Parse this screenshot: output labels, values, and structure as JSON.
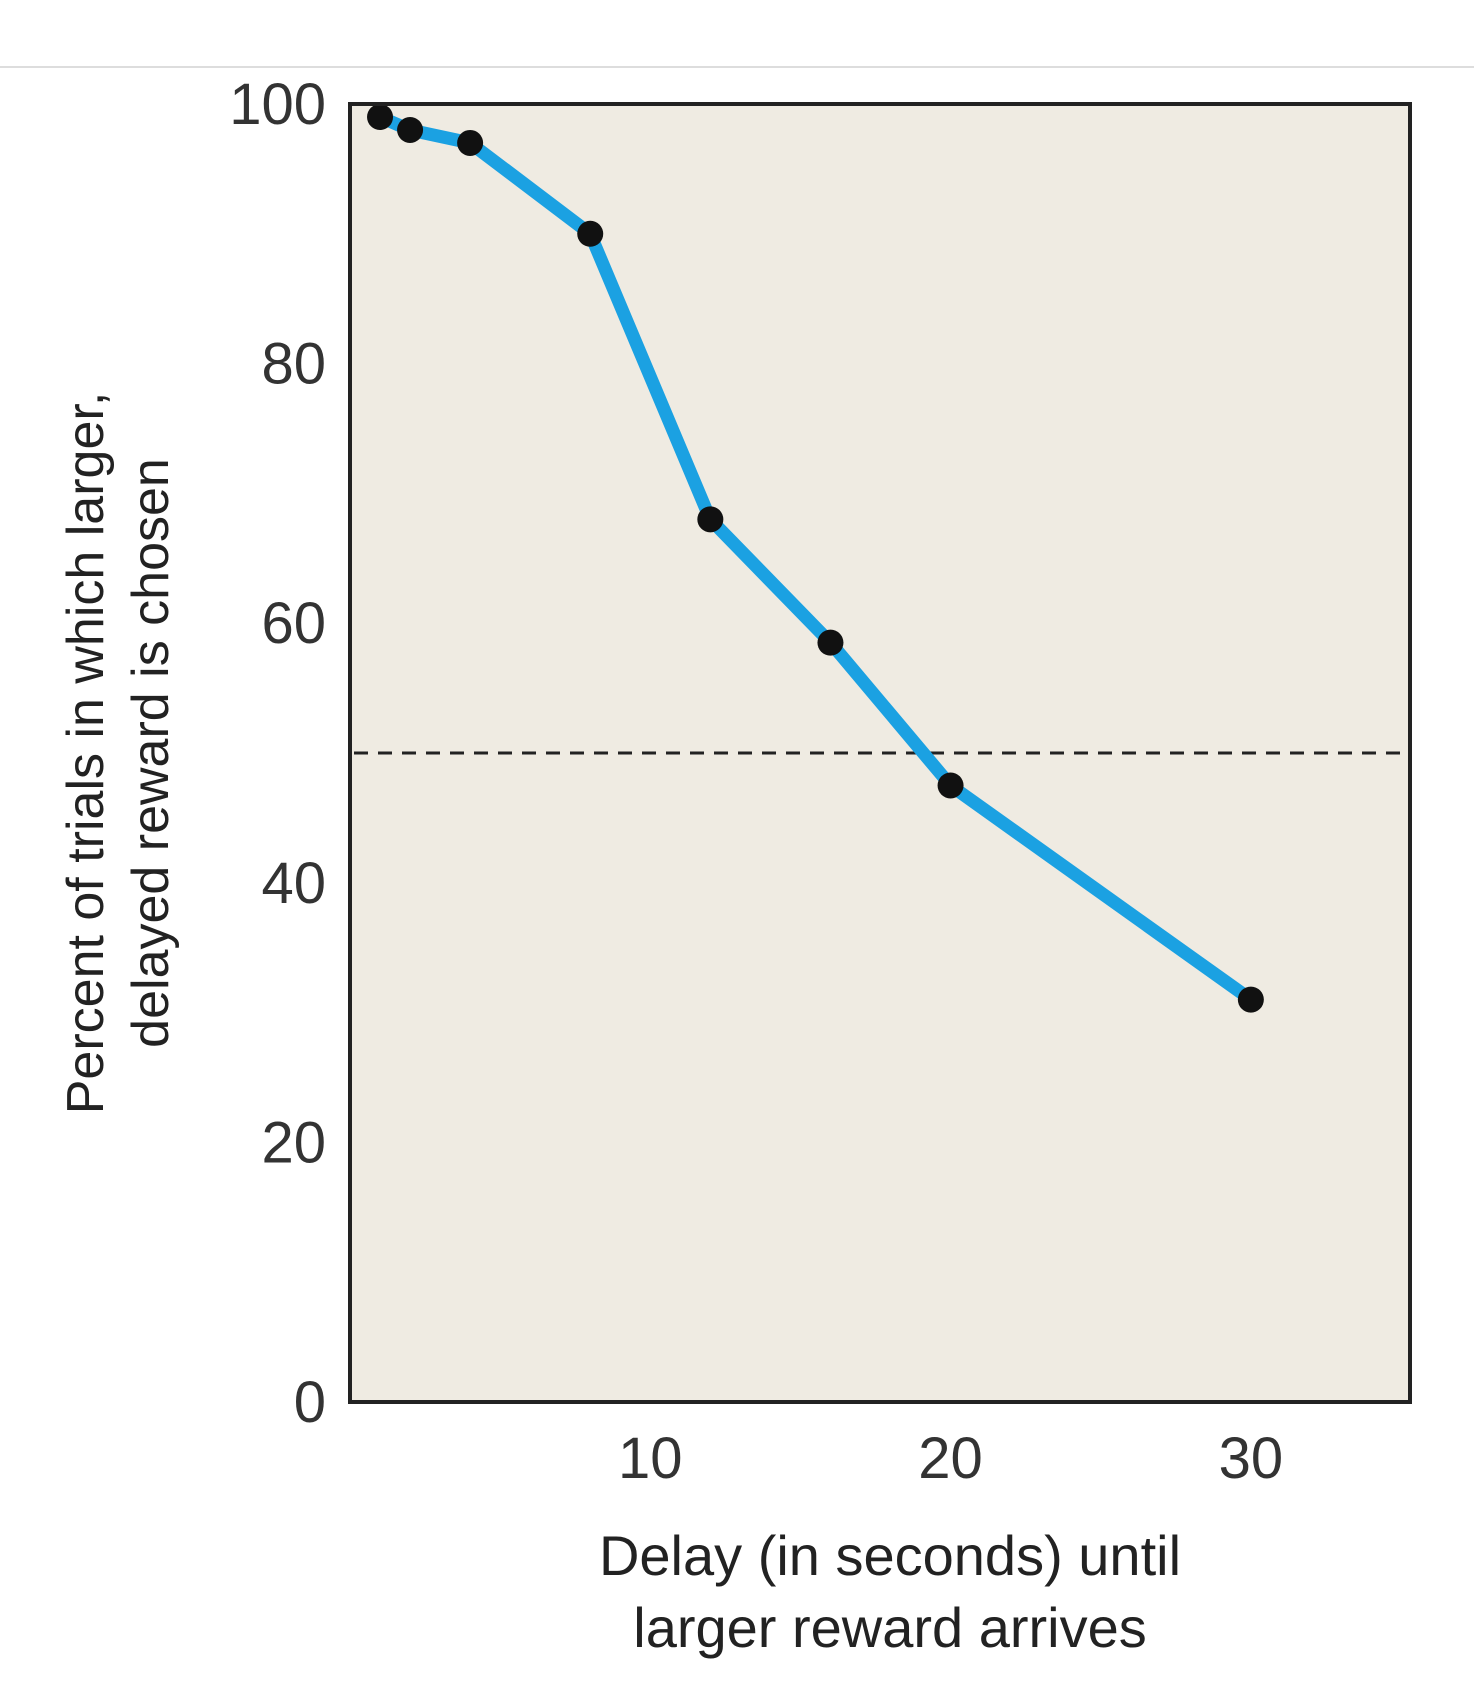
{
  "chart_data": {
    "type": "line",
    "title": "",
    "xlabel_lines": [
      "Delay (in seconds) until",
      "larger reward arrives"
    ],
    "ylabel_lines": [
      "Percent of trials in which larger,",
      "delayed reward is chosen"
    ],
    "xlim": [
      0,
      35.3
    ],
    "ylim": [
      0,
      100
    ],
    "xticks": [
      10,
      20,
      30
    ],
    "yticks": [
      0,
      20,
      40,
      60,
      80,
      100
    ],
    "xtick_labels": [
      "10",
      "20",
      "30"
    ],
    "ytick_labels": [
      "0",
      "20",
      "40",
      "60",
      "80",
      "100"
    ],
    "reference_line": {
      "y": 50,
      "style": "dashed"
    },
    "grid": false,
    "series": [
      {
        "x": [
          1,
          2,
          4,
          8,
          12,
          16,
          20,
          30
        ],
        "y": [
          99,
          98,
          97,
          90,
          68,
          58.5,
          47.5,
          31
        ],
        "color": "#1ba1e2",
        "marker_color": "#111111"
      }
    ],
    "colors": {
      "plot_background": "#efebe2",
      "axis": "#222222",
      "line": "#1ba1e2",
      "marker": "#111111",
      "reference_line": "#222222"
    }
  }
}
